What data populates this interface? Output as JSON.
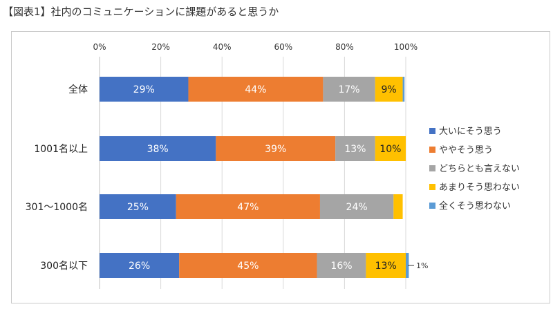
{
  "title": "【図表1】社内のコミュニケーションに課題があると思うか",
  "chart_data": {
    "type": "bar",
    "orientation": "horizontal",
    "stacked": true,
    "categories": [
      "全体",
      "1001名以上",
      "301〜1000名",
      "300名以下"
    ],
    "x_ticks": [
      "0%",
      "20%",
      "40%",
      "60%",
      "80%",
      "100%"
    ],
    "xlim": [
      0,
      100
    ],
    "grid": true,
    "legend_position": "right",
    "series": [
      {
        "name": "大いにそう思う",
        "color": "#4472c4",
        "values": [
          29,
          38,
          25,
          26
        ],
        "labels": [
          "29%",
          "38%",
          "25%",
          "26%"
        ]
      },
      {
        "name": "ややそう思う",
        "color": "#ed7d31",
        "values": [
          44,
          39,
          47,
          45
        ],
        "labels": [
          "44%",
          "39%",
          "47%",
          "45%"
        ]
      },
      {
        "name": "どちらとも言えない",
        "color": "#a5a5a5",
        "values": [
          17,
          13,
          24,
          16
        ],
        "labels": [
          "17%",
          "13%",
          "24%",
          "16%"
        ]
      },
      {
        "name": "あまりそう思わない",
        "color": "#ffc000",
        "values": [
          9,
          10,
          3,
          13
        ],
        "labels": [
          "9%",
          "10%",
          "",
          "13%"
        ]
      },
      {
        "name": "全くそう思わない",
        "color": "#5b9bd5",
        "values": [
          0.6,
          0,
          0,
          1
        ],
        "labels": [
          "",
          "",
          "",
          ""
        ]
      }
    ],
    "annotations": [
      {
        "category": "300名以下",
        "text": "1%"
      }
    ]
  }
}
